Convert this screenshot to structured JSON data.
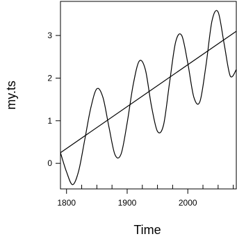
{
  "chart_data": {
    "type": "line",
    "title": "",
    "xlabel": "Time",
    "ylabel": "my.ts",
    "xlim": [
      1790,
      2080
    ],
    "ylim": [
      -0.6,
      3.8
    ],
    "x_ticks": [
      1800,
      1900,
      2000
    ],
    "x_minor_ticks": [
      1825,
      1850,
      1875,
      1925,
      1950,
      1975,
      2025,
      2050,
      2075
    ],
    "y_ticks": [
      0,
      1,
      2,
      3
    ],
    "grid": false,
    "series": [
      {
        "style": "line",
        "x": [
          1790,
          1800,
          1810,
          1820,
          1830,
          1840,
          1850,
          1860,
          1870,
          1880,
          1890,
          1900,
          1910,
          1920,
          1930,
          1940,
          1950,
          1960,
          1970,
          1980,
          1990,
          2000,
          2010,
          2020,
          2030,
          2040,
          2050,
          2060,
          2070,
          2080
        ],
        "y": [
          0.25,
          -0.2,
          -0.5,
          -0.18,
          0.55,
          1.3,
          1.75,
          1.55,
          0.85,
          0.2,
          0.22,
          0.95,
          1.85,
          2.4,
          2.2,
          1.35,
          0.75,
          0.9,
          1.9,
          2.85,
          3.0,
          2.35,
          1.55,
          1.45,
          2.3,
          3.35,
          3.55,
          2.8,
          2.05,
          2.2
        ]
      },
      {
        "style": "trend",
        "x": [
          1790,
          2080
        ],
        "y": [
          0.25,
          3.1
        ]
      }
    ]
  }
}
